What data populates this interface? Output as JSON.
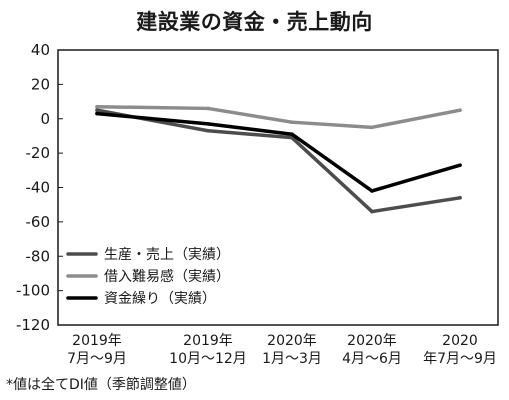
{
  "chart_data": {
    "type": "line",
    "title": "建設業の資金・売上動向",
    "categories": [
      [
        "2019年",
        "7月～9月"
      ],
      [
        "2019年",
        "10月～12月"
      ],
      [
        "2020年",
        "1月～3月"
      ],
      [
        "2020年",
        "4月～6月"
      ],
      [
        "2020",
        "年7月～9月"
      ]
    ],
    "yticks": [
      "40",
      "20",
      "0",
      "-20",
      "-40",
      "-60",
      "-80",
      "-100",
      "-120"
    ],
    "ylim": [
      -120,
      40
    ],
    "grid": false,
    "legend_position": "bottom-left",
    "series": [
      {
        "name": "生産・売上（実績）",
        "color": "#4d4d4d",
        "values": [
          5,
          -7,
          -11,
          -54,
          -46
        ]
      },
      {
        "name": "借入難易感（実績）",
        "color": "#8c8c8c",
        "values": [
          7,
          6,
          -2,
          -5,
          5
        ]
      },
      {
        "name": "資金繰り（実績）",
        "color": "#000000",
        "values": [
          3,
          -3,
          -9,
          -42,
          -27
        ]
      }
    ],
    "footnote": "*値は全てDI値（季節調整値）"
  }
}
